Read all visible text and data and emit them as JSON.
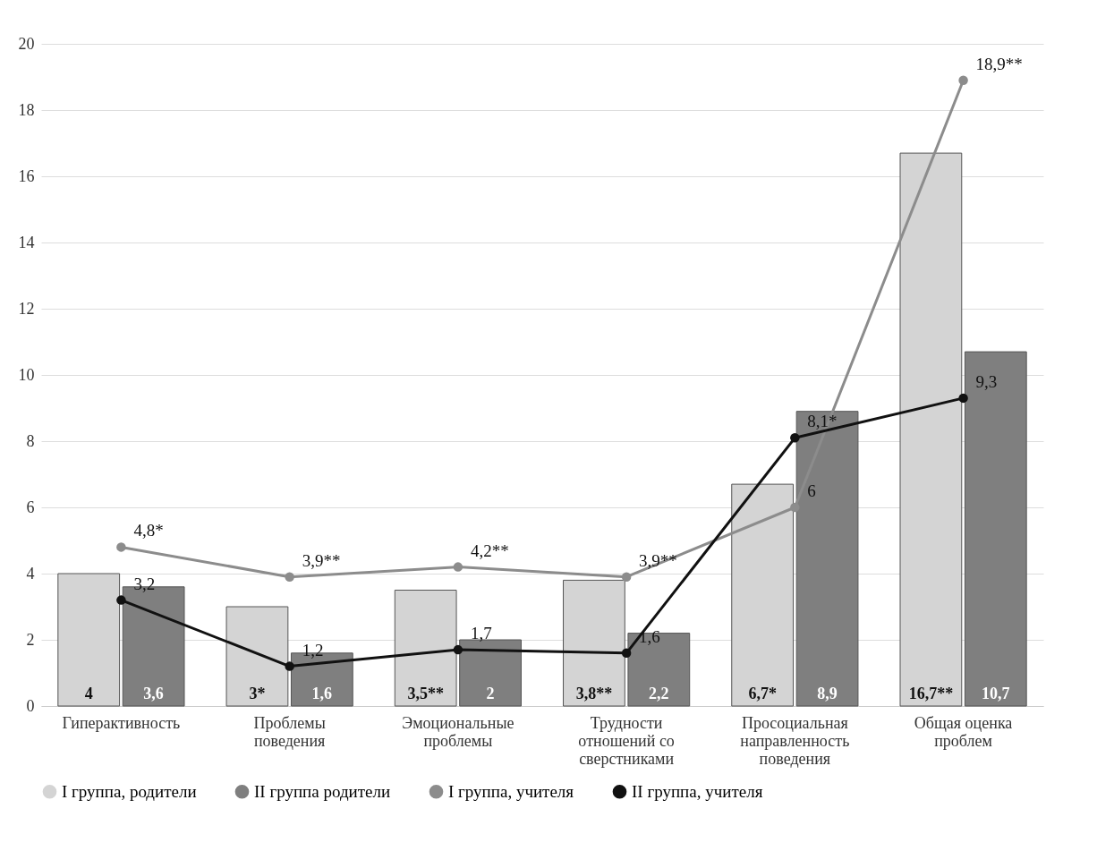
{
  "chart_data": {
    "type": "bar",
    "categories": [
      "Гиперактивность",
      "Проблемы поведения",
      "Эмоциональные проблемы",
      "Трудности отношений со сверстниками",
      "Просоциальная направленность поведения",
      "Общая оценка проблем"
    ],
    "series": [
      {
        "name": "I группа, родители",
        "color": "#d4d4d4",
        "values": [
          4,
          3,
          3.5,
          3.8,
          6.7,
          16.7
        ],
        "value_labels": [
          "4",
          "3*",
          "3,5**",
          "3,8**",
          "6,7*",
          "16,7**"
        ]
      },
      {
        "name": "II группа родители",
        "color": "#7f7f7f",
        "values": [
          3.6,
          1.6,
          2,
          2.2,
          8.9,
          10.7
        ],
        "value_labels": [
          "3,6",
          "1,6",
          "2",
          "2,2",
          "8,9",
          "10,7"
        ]
      },
      {
        "name": "I группа, учителя",
        "type": "line",
        "color": "#8c8c8c",
        "values": [
          4.8,
          3.9,
          4.2,
          3.9,
          6,
          18.9
        ],
        "value_labels": [
          "4,8*",
          "3,9**",
          "4,2**",
          "3,9**",
          "6",
          "18,9**"
        ]
      },
      {
        "name": "II группа, учителя",
        "type": "line",
        "color": "#111111",
        "values": [
          3.2,
          1.2,
          1.7,
          1.6,
          8.1,
          9.3
        ],
        "value_labels": [
          "3,2",
          "1,2",
          "1,7",
          "1,6",
          "8,1*",
          "9,3"
        ]
      }
    ],
    "ylim": [
      0,
      20
    ],
    "yticks": [
      0,
      2,
      4,
      6,
      8,
      10,
      12,
      14,
      16,
      18,
      20
    ],
    "grid": "y",
    "legend": "bottom",
    "marker": "circle"
  }
}
